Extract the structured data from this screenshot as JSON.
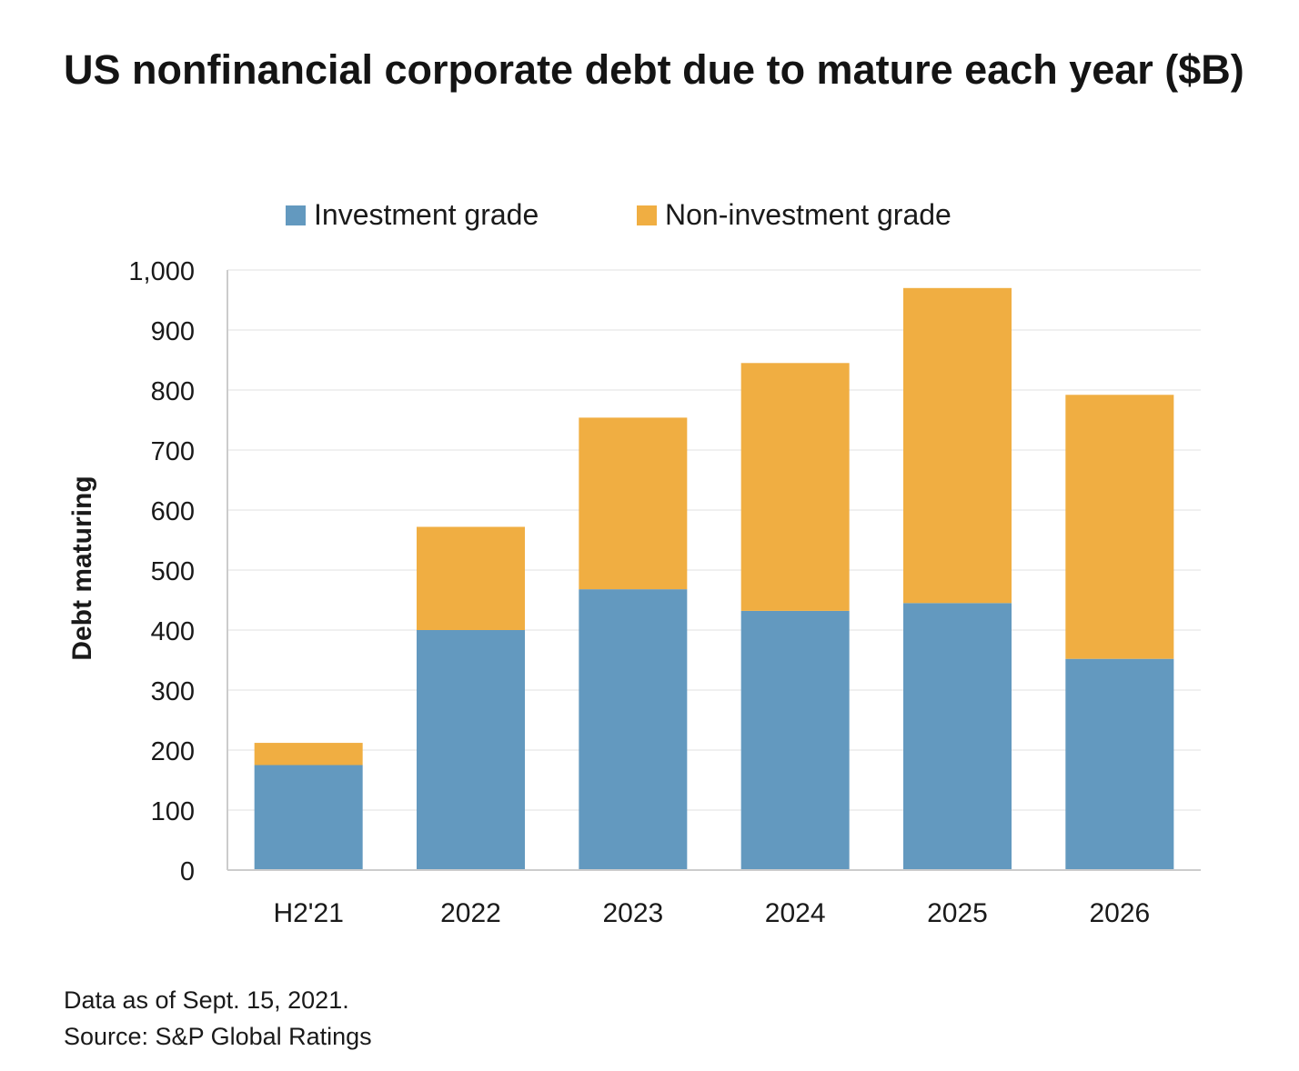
{
  "colors": {
    "investment_grade": "#6399bf",
    "non_investment_grade": "#f0ae42",
    "gridline": "#ececec",
    "axis": "#cccccc",
    "text": "#1a1a1a"
  },
  "chart_data": {
    "type": "bar",
    "stacked": true,
    "title": "US nonfinancial corporate debt due to mature each year ($B)",
    "xlabel": "",
    "ylabel": "Debt maturing",
    "categories": [
      "H2'21",
      "2022",
      "2023",
      "2024",
      "2025",
      "2026"
    ],
    "series": [
      {
        "name": "Investment grade",
        "values": [
          175,
          400,
          468,
          432,
          445,
          352
        ]
      },
      {
        "name": "Non-investment grade",
        "values": [
          37,
          172,
          286,
          413,
          525,
          440
        ]
      }
    ],
    "ylim": [
      0,
      1000
    ],
    "yticks": [
      0,
      100,
      200,
      300,
      400,
      500,
      600,
      700,
      800,
      900,
      1000
    ],
    "ytick_labels": [
      "0",
      "100",
      "200",
      "300",
      "400",
      "500",
      "600",
      "700",
      "800",
      "900",
      "1,000"
    ],
    "grid": true,
    "legend_position": "top-center"
  },
  "footnotes": {
    "data_as_of": "Data as of Sept. 15, 2021.",
    "source": "Source: S&P Global Ratings"
  }
}
